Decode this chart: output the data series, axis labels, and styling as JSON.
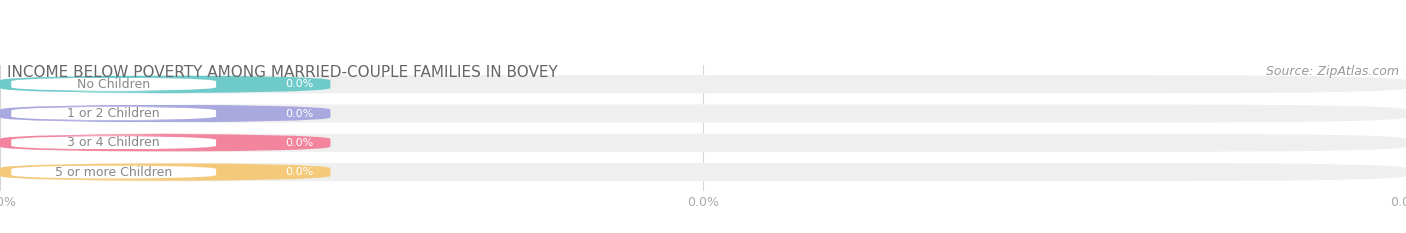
{
  "title": "INCOME BELOW POVERTY AMONG MARRIED-COUPLE FAMILIES IN BOVEY",
  "source": "Source: ZipAtlas.com",
  "categories": [
    "No Children",
    "1 or 2 Children",
    "3 or 4 Children",
    "5 or more Children"
  ],
  "values": [
    0.0,
    0.0,
    0.0,
    0.0
  ],
  "bar_colors": [
    "#6ecbca",
    "#a9a9e0",
    "#f2849e",
    "#f5c97a"
  ],
  "bar_bg_color": "#efefef",
  "label_bg_color": "#ffffff",
  "label_text_color": "#888888",
  "value_text_color": "#ffffff",
  "title_color": "#666666",
  "source_color": "#999999",
  "background_color": "#ffffff",
  "bar_height": 0.62,
  "title_fontsize": 11,
  "label_fontsize": 9,
  "value_fontsize": 8,
  "source_fontsize": 9,
  "tick_fontsize": 9,
  "tick_color": "#aaaaaa"
}
